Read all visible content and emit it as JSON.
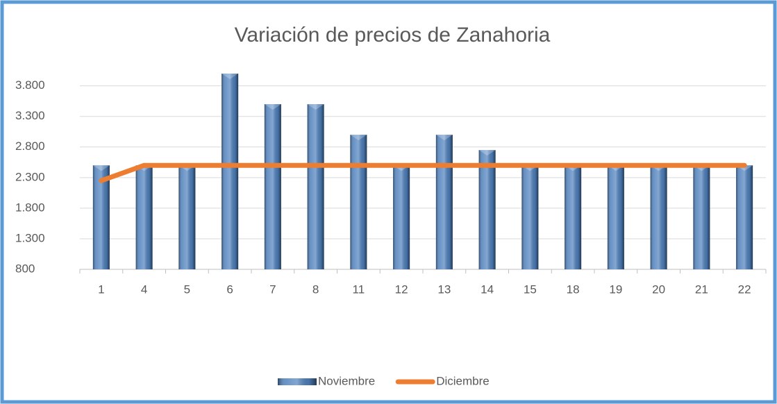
{
  "chart_data": {
    "type": "bar",
    "title": "Variación de precios de Zanahoria",
    "categories": [
      "1",
      "4",
      "5",
      "6",
      "7",
      "8",
      "11",
      "12",
      "13",
      "14",
      "15",
      "18",
      "19",
      "20",
      "21",
      "22"
    ],
    "series": [
      {
        "name": "Noviembre",
        "type": "bar",
        "color": "#4f81bd",
        "values": [
          2500,
          2500,
          2500,
          4000,
          3500,
          3500,
          3000,
          2500,
          3000,
          2750,
          2500,
          2500,
          2500,
          2500,
          2500,
          2500
        ]
      },
      {
        "name": "Diciembre",
        "type": "line",
        "color": "#ed7d31",
        "values": [
          2250,
          2500,
          2500,
          2500,
          2500,
          2500,
          2500,
          2500,
          2500,
          2500,
          2500,
          2500,
          2500,
          2500,
          2500,
          2500
        ]
      }
    ],
    "ylim": [
      800,
      4000
    ],
    "yticks": [
      800,
      {
        "value": 1300,
        "label": "1.300"
      },
      {
        "value": 1800,
        "label": "1.800"
      },
      {
        "value": 2300,
        "label": "2.300"
      },
      {
        "value": 2800,
        "label": "2.800"
      },
      {
        "value": 3300,
        "label": "3.300"
      },
      {
        "value": 3800,
        "label": "3.800"
      }
    ],
    "grid": true,
    "legend": "bottom"
  }
}
